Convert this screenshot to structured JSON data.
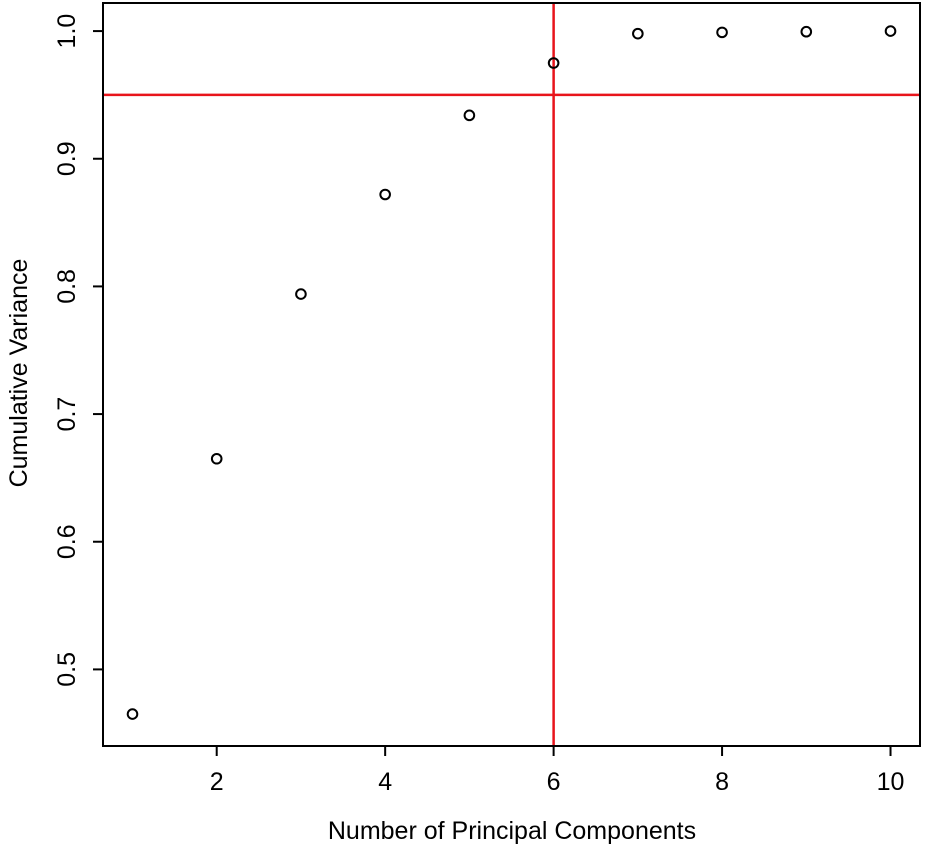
{
  "chart_data": {
    "type": "scatter",
    "xlabel": "Number of Principal Components",
    "ylabel": "Cumulative Variance",
    "xlim": [
      0.65,
      10.35
    ],
    "ylim": [
      0.44,
      1.022
    ],
    "x_ticks": [
      2,
      4,
      6,
      8,
      10
    ],
    "x_tick_labels": [
      "2",
      "4",
      "6",
      "8",
      "10"
    ],
    "y_ticks": [
      0.5,
      0.6,
      0.7,
      0.8,
      0.9,
      1.0
    ],
    "y_tick_labels": [
      "0.5",
      "0.6",
      "0.7",
      "0.8",
      "0.9",
      "1.0"
    ],
    "grid": false,
    "x": [
      1,
      2,
      3,
      4,
      5,
      6,
      7,
      8,
      9,
      10
    ],
    "y": [
      0.465,
      0.665,
      0.794,
      0.872,
      0.934,
      0.975,
      0.998,
      0.999,
      0.9995,
      1.0
    ],
    "marker": "open-circle",
    "point_color": "#000000",
    "reference_lines": [
      {
        "orientation": "horizontal",
        "value": 0.95,
        "color": "#e8141b"
      },
      {
        "orientation": "vertical",
        "value": 6,
        "color": "#e8141b"
      }
    ]
  }
}
